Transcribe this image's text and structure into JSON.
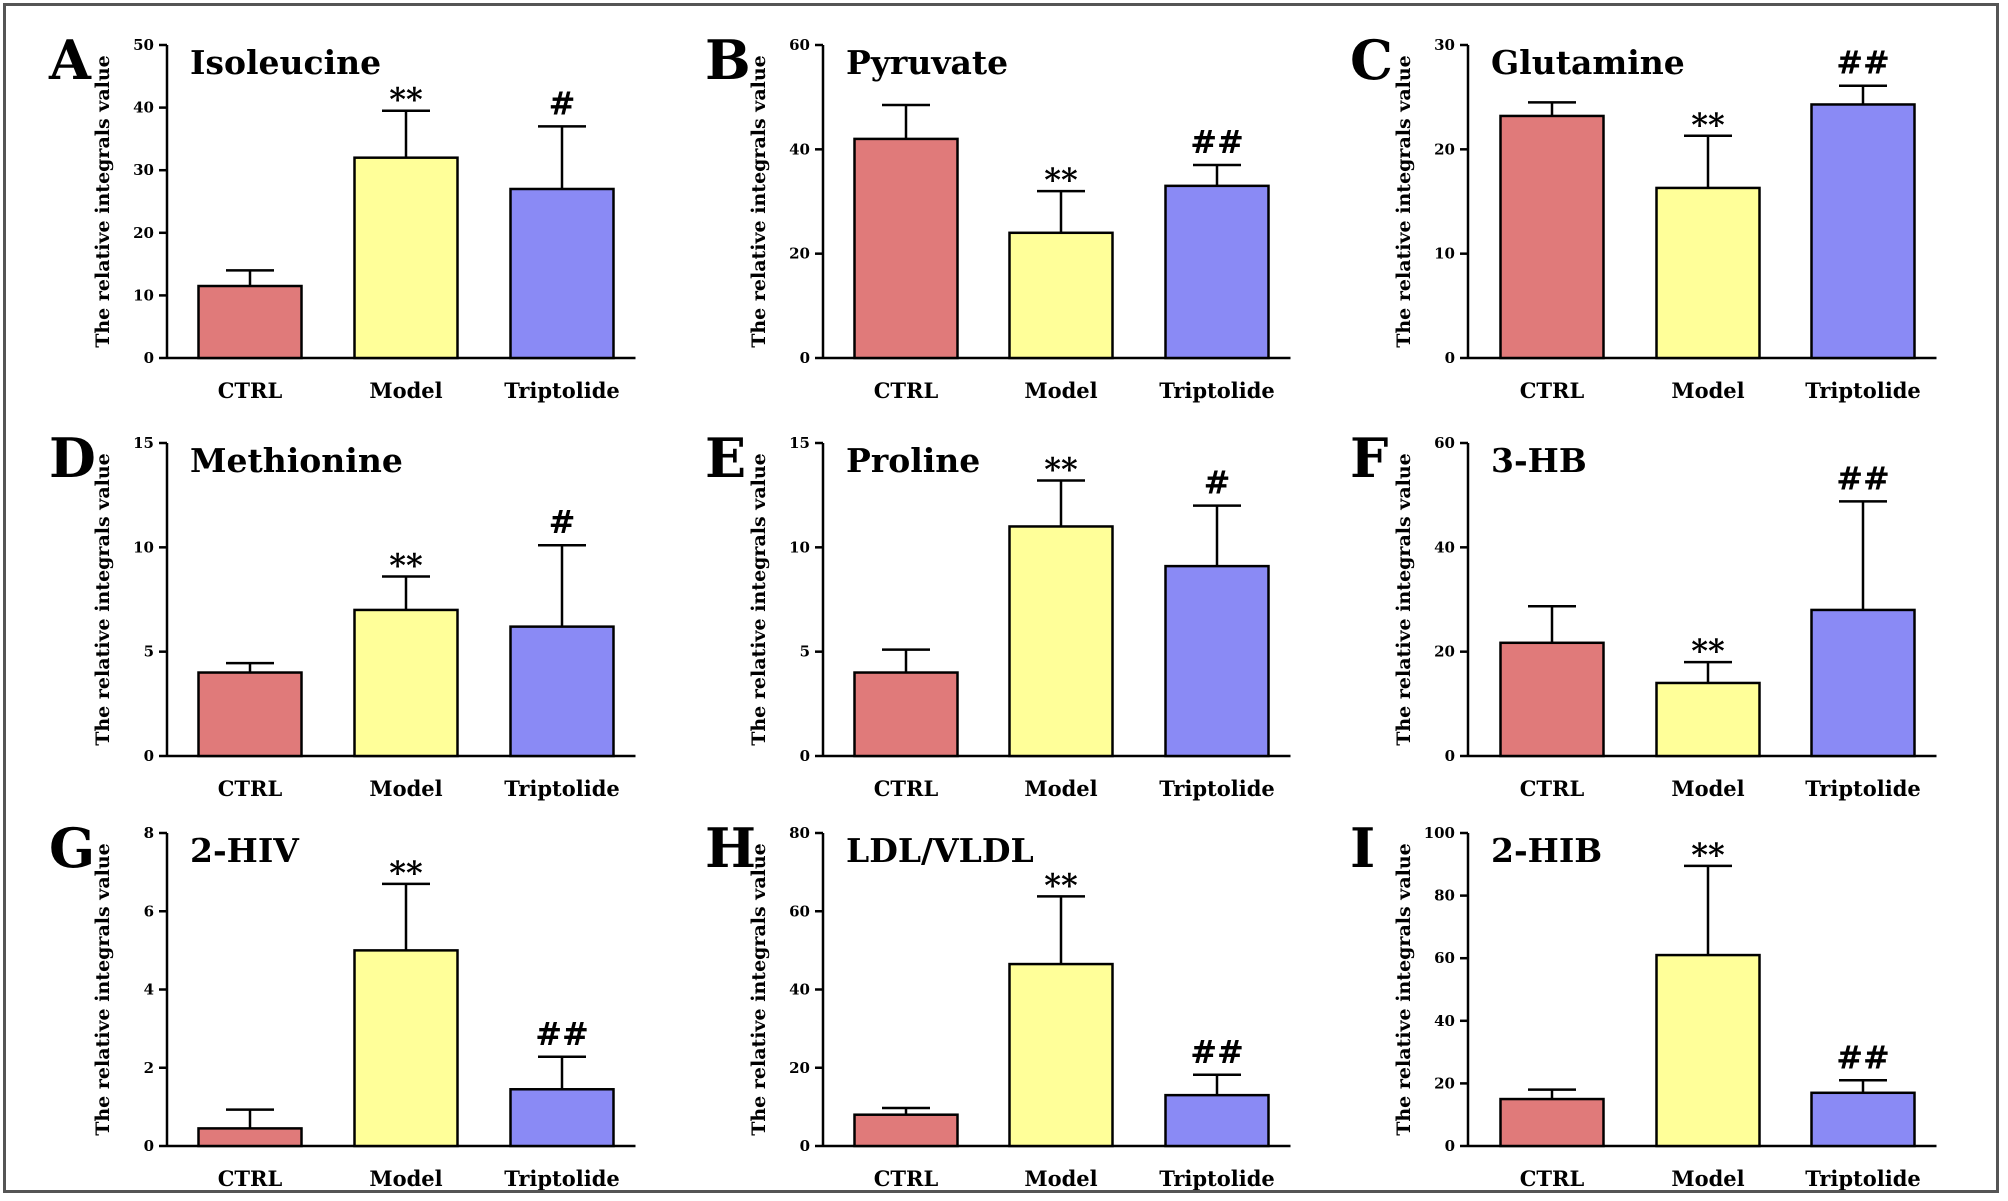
{
  "chart_data": [
    {
      "type": "bar",
      "panel_letter": "A",
      "title": "Isoleucine",
      "ylabel": "The relative integrals value",
      "ylim": [
        0,
        50
      ],
      "yticks": [
        "0",
        "10",
        "20",
        "30",
        "40",
        "50"
      ],
      "categories": [
        "CTRL",
        "Model",
        "Triptolide"
      ],
      "values": [
        11.5,
        32,
        27
      ],
      "errors": [
        2.5,
        7.5,
        10
      ],
      "significance": [
        "",
        "**",
        "#"
      ]
    },
    {
      "type": "bar",
      "panel_letter": "B",
      "title": "Pyruvate",
      "ylabel": "The relative integrals value",
      "ylim": [
        0,
        60
      ],
      "yticks": [
        "0",
        "20",
        "40",
        "60"
      ],
      "categories": [
        "CTRL",
        "Model",
        "Triptolide"
      ],
      "values": [
        42,
        24,
        33
      ],
      "errors": [
        6.5,
        8,
        4
      ],
      "significance": [
        "",
        "**",
        "##"
      ]
    },
    {
      "type": "bar",
      "panel_letter": "C",
      "title": "Glutamine",
      "ylabel": "The relative integrals value",
      "ylim": [
        0,
        30
      ],
      "yticks": [
        "0",
        "10",
        "20",
        "30"
      ],
      "categories": [
        "CTRL",
        "Model",
        "Triptolide"
      ],
      "values": [
        23.2,
        16.3,
        24.3
      ],
      "errors": [
        1.3,
        5,
        1.8
      ],
      "significance": [
        "",
        "**",
        "##"
      ]
    },
    {
      "type": "bar",
      "panel_letter": "D",
      "title": "Methionine",
      "ylabel": "The relative integrals value",
      "ylim": [
        0,
        15
      ],
      "yticks": [
        "0",
        "5",
        "10",
        "15"
      ],
      "categories": [
        "CTRL",
        "Model",
        "Triptolide"
      ],
      "values": [
        4,
        7,
        6.2
      ],
      "errors": [
        0.45,
        1.6,
        3.9
      ],
      "significance": [
        "",
        "**",
        "#"
      ]
    },
    {
      "type": "bar",
      "panel_letter": "E",
      "title": "Proline",
      "ylabel": "The relative integrals value",
      "ylim": [
        0,
        15
      ],
      "yticks": [
        "0",
        "5",
        "10",
        "15"
      ],
      "categories": [
        "CTRL",
        "Model",
        "Triptolide"
      ],
      "values": [
        4,
        11,
        9.1
      ],
      "errors": [
        1.1,
        2.2,
        2.9
      ],
      "significance": [
        "",
        "**",
        "#"
      ]
    },
    {
      "type": "bar",
      "panel_letter": "F",
      "title": "3-HB",
      "ylabel": "The relative integrals value",
      "ylim": [
        0,
        60
      ],
      "yticks": [
        "0",
        "20",
        "40",
        "60"
      ],
      "categories": [
        "CTRL",
        "Model",
        "Triptolide"
      ],
      "values": [
        21.7,
        14,
        28
      ],
      "errors": [
        7,
        4,
        20.8
      ],
      "significance": [
        "",
        "**",
        "##"
      ]
    },
    {
      "type": "bar",
      "panel_letter": "G",
      "title": "2-HIV",
      "ylabel": "The relative integrals value",
      "ylim": [
        0,
        8
      ],
      "yticks": [
        "0",
        "2",
        "4",
        "6",
        "8"
      ],
      "categories": [
        "CTRL",
        "Model",
        "Triptolide"
      ],
      "values": [
        0.45,
        5,
        1.45
      ],
      "errors": [
        0.48,
        1.7,
        0.83
      ],
      "significance": [
        "",
        "**",
        "##"
      ]
    },
    {
      "type": "bar",
      "panel_letter": "H",
      "title": "LDL/VLDL",
      "ylabel": "The relative integrals value",
      "ylim": [
        0,
        80
      ],
      "yticks": [
        "0",
        "20",
        "40",
        "60",
        "80"
      ],
      "categories": [
        "CTRL",
        "Model",
        "Triptolide"
      ],
      "values": [
        8,
        46.5,
        13
      ],
      "errors": [
        1.7,
        17.3,
        5.2
      ],
      "significance": [
        "",
        "**",
        "##"
      ]
    },
    {
      "type": "bar",
      "panel_letter": "I",
      "title": "2-HIB",
      "ylabel": "The relative integrals value",
      "ylim": [
        0,
        100
      ],
      "yticks": [
        "0",
        "20",
        "40",
        "60",
        "80",
        "100"
      ],
      "categories": [
        "CTRL",
        "Model",
        "Triptolide"
      ],
      "values": [
        15,
        61,
        17
      ],
      "errors": [
        3,
        28.5,
        4
      ],
      "significance": [
        "",
        "**",
        "##"
      ]
    }
  ],
  "colors": {
    "bar_fills": [
      "#e07a7a",
      "#ffff99",
      "#8a8af5"
    ],
    "bar_stroke": "#000000",
    "frame_border": "#555555"
  }
}
